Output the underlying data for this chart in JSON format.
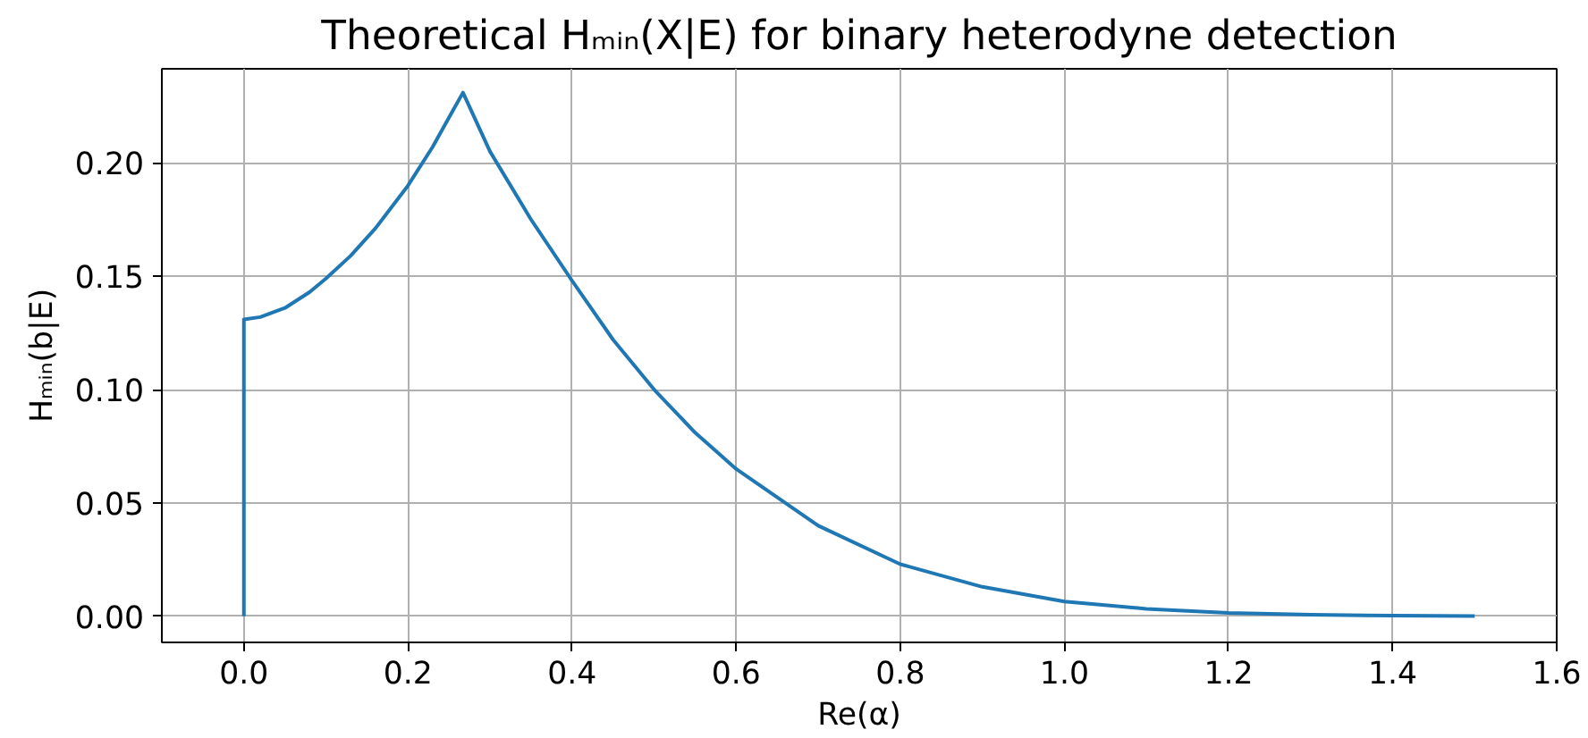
{
  "chart_data": {
    "type": "line",
    "title": "Theoretical Hₘᵢₙ(X|E) for binary heterodyne detection",
    "xlabel": "Re(α)",
    "ylabel": "Hₘᵢₙ(b|E)",
    "x": [
      0,
      0,
      0.02,
      0.05,
      0.08,
      0.1,
      0.13,
      0.16,
      0.2,
      0.23,
      0.25,
      0.267,
      0.3,
      0.35,
      0.4,
      0.45,
      0.5,
      0.55,
      0.6,
      0.7,
      0.8,
      0.9,
      1.0,
      1.1,
      1.2,
      1.3,
      1.4,
      1.5
    ],
    "series": [
      {
        "color": "#1f77b4",
        "values": [
          0,
          0.131,
          0.132,
          0.136,
          0.143,
          0.149,
          0.159,
          0.171,
          0.19,
          0.207,
          0.22,
          0.231,
          0.205,
          0.175,
          0.148,
          0.122,
          0.1,
          0.081,
          0.065,
          0.04,
          0.023,
          0.013,
          0.0065,
          0.0033,
          0.0015,
          0.0007,
          0.0003,
          0.0001
        ]
      }
    ],
    "xlim": [
      -0.1,
      1.6
    ],
    "ylim": [
      -0.0115,
      0.2415
    ],
    "xticks": [
      {
        "value": 0,
        "label": "0.0"
      },
      0.2,
      0.4,
      0.6,
      0.8,
      {
        "value": 1,
        "label": "1.0"
      },
      1.2,
      1.4,
      1.6
    ],
    "yticks": [
      {
        "value": 0,
        "label": "0.00"
      },
      0.05,
      {
        "value": 0.1,
        "label": "0.10"
      },
      0.15,
      {
        "value": 0.2,
        "label": "0.20"
      }
    ],
    "grid": true,
    "marker": "none",
    "line_style": "solid"
  }
}
